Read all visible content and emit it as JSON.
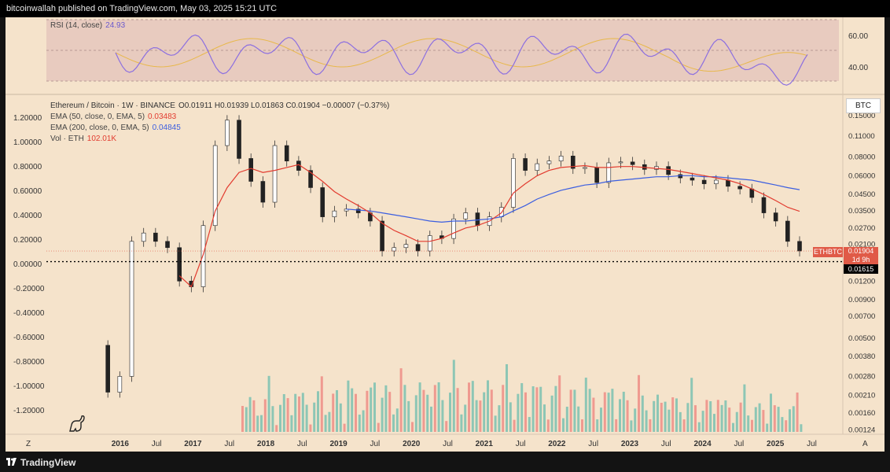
{
  "header": {
    "published": "bitcoinwallah published on TradingView.com, May 03, 2025 15:21 UTC"
  },
  "footer": {
    "brand": "TradingView"
  },
  "colors": {
    "panel_bg": "#f5e3cb",
    "ema50": "#e23b2f",
    "ema200": "#3b5ee0",
    "rsi": "#8c6fe0",
    "rsi_ma": "#e8b84a",
    "vol_up": "#8dc6b5",
    "vol_down": "#ef9a90",
    "price_tag": "#e05a47"
  },
  "rsi": {
    "legend_label": "RSI (14, close)",
    "legend_value": "24.93",
    "ticks": [
      "60.00",
      "40.00"
    ]
  },
  "main": {
    "symbol_line": "Ethereum / Bitcoin · 1W · BINANCE",
    "ohlc": "O0.01911 H0.01939 L0.01863 C0.01904 −0.00007 (−0.37%)",
    "ema50_label": "EMA (50, close, 0, EMA, 5)",
    "ema50_value": "0.03483",
    "ema200_label": "EMA (200, close, 0, EMA, 5)",
    "ema200_value": "0.04845",
    "vol_label": "Vol · ETH",
    "vol_value": "102.01K",
    "currency": "BTC",
    "ticker_tag": "ETHBTC",
    "price_tag": "0.01904",
    "countdown": "1d 9h",
    "line_tag": "0.01615",
    "left_axis": [
      "1.20000",
      "1.00000",
      "0.80000",
      "0.60000",
      "0.40000",
      "0.20000",
      "0.00000",
      "-0.20000",
      "-0.40000",
      "-0.60000",
      "-0.80000",
      "-1.00000",
      "-1.20000"
    ],
    "right_axis": [
      "0.15000",
      "0.11000",
      "0.08000",
      "0.06000",
      "0.04500",
      "0.03500",
      "0.02700",
      "0.02100",
      "0.01600",
      "0.01200",
      "0.00900",
      "0.00700",
      "0.00500",
      "0.00380",
      "0.00280",
      "0.00210",
      "0.00160",
      "0.00124"
    ],
    "x_axis": [
      "2016",
      "Jul",
      "2017",
      "Jul",
      "2018",
      "Jul",
      "2019",
      "Jul",
      "2020",
      "Jul",
      "2021",
      "Jul",
      "2022",
      "Jul",
      "2023",
      "Jul",
      "2024",
      "Jul",
      "2025",
      "Jul"
    ],
    "x_corner_left": "Z",
    "x_corner_right": "A"
  },
  "chart_data": {
    "type": "line",
    "title": "Ethereum / Bitcoin · 1W · BINANCE",
    "x": [
      "2015-09",
      "2015-11",
      "2016-01",
      "2016-03",
      "2016-05",
      "2016-07",
      "2016-09",
      "2016-11",
      "2017-01",
      "2017-03",
      "2017-05",
      "2017-06",
      "2017-08",
      "2017-10",
      "2017-12",
      "2018-01",
      "2018-03",
      "2018-05",
      "2018-07",
      "2018-09",
      "2018-11",
      "2019-01",
      "2019-03",
      "2019-05",
      "2019-07",
      "2019-09",
      "2019-11",
      "2020-01",
      "2020-03",
      "2020-05",
      "2020-07",
      "2020-09",
      "2020-11",
      "2021-01",
      "2021-03",
      "2021-05",
      "2021-07",
      "2021-09",
      "2021-11",
      "2022-01",
      "2022-03",
      "2022-05",
      "2022-07",
      "2022-09",
      "2022-11",
      "2023-01",
      "2023-03",
      "2023-05",
      "2023-07",
      "2023-09",
      "2023-11",
      "2024-01",
      "2024-03",
      "2024-05",
      "2024-07",
      "2024-09",
      "2024-11",
      "2025-01",
      "2025-03",
      "2025-04"
    ],
    "series": [
      {
        "name": "ETHBTC",
        "values": [
          0.0045,
          0.0022,
          0.0028,
          0.022,
          0.025,
          0.022,
          0.02,
          0.012,
          0.011,
          0.028,
          0.095,
          0.14,
          0.078,
          0.055,
          0.04,
          0.095,
          0.075,
          0.065,
          0.05,
          0.032,
          0.035,
          0.036,
          0.034,
          0.03,
          0.019,
          0.02,
          0.021,
          0.019,
          0.024,
          0.023,
          0.031,
          0.034,
          0.028,
          0.032,
          0.037,
          0.078,
          0.065,
          0.072,
          0.075,
          0.081,
          0.067,
          0.068,
          0.054,
          0.073,
          0.074,
          0.071,
          0.066,
          0.069,
          0.061,
          0.058,
          0.056,
          0.053,
          0.056,
          0.051,
          0.049,
          0.043,
          0.034,
          0.03,
          0.022,
          0.019
        ]
      },
      {
        "name": "EMA (50, close, 0, EMA, 5)",
        "values": [
          null,
          null,
          null,
          null,
          null,
          null,
          null,
          0.013,
          0.011,
          0.018,
          0.035,
          0.05,
          0.063,
          0.067,
          0.063,
          0.065,
          0.068,
          0.071,
          0.063,
          0.055,
          0.047,
          0.042,
          0.038,
          0.034,
          0.029,
          0.026,
          0.024,
          0.022,
          0.022,
          0.023,
          0.025,
          0.027,
          0.028,
          0.03,
          0.034,
          0.046,
          0.053,
          0.06,
          0.065,
          0.068,
          0.069,
          0.07,
          0.068,
          0.068,
          0.069,
          0.069,
          0.068,
          0.067,
          0.066,
          0.064,
          0.062,
          0.06,
          0.058,
          0.056,
          0.053,
          0.049,
          0.045,
          0.041,
          0.037,
          0.0348
        ]
      },
      {
        "name": "EMA (200, close, 0, EMA, 5)",
        "values": [
          null,
          null,
          null,
          null,
          null,
          null,
          null,
          null,
          null,
          null,
          null,
          null,
          null,
          null,
          null,
          null,
          null,
          null,
          null,
          null,
          null,
          0.036,
          0.0355,
          0.035,
          0.034,
          0.033,
          0.032,
          0.031,
          0.03,
          0.0295,
          0.03,
          0.03,
          0.0305,
          0.031,
          0.032,
          0.035,
          0.038,
          0.042,
          0.045,
          0.048,
          0.05,
          0.052,
          0.053,
          0.055,
          0.056,
          0.057,
          0.058,
          0.059,
          0.059,
          0.06,
          0.06,
          0.059,
          0.059,
          0.058,
          0.057,
          0.056,
          0.054,
          0.052,
          0.05,
          0.04845
        ]
      }
    ],
    "y_scale": "log",
    "ylim": [
      0.0012,
      0.15
    ],
    "horizontal_line": 0.01615,
    "grid": false
  }
}
